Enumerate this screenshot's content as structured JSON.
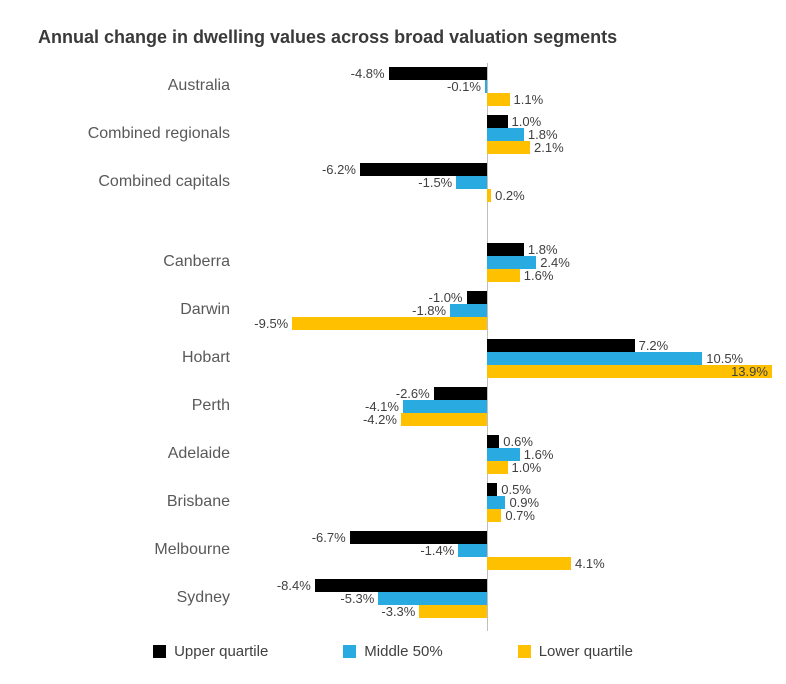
{
  "chart_data": {
    "type": "bar",
    "orientation": "horizontal",
    "title": "Annual change in dwelling values across broad valuation segments",
    "categories": [
      "Australia",
      "Combined regionals",
      "Combined capitals",
      "Canberra",
      "Darwin",
      "Hobart",
      "Perth",
      "Adelaide",
      "Brisbane",
      "Melbourne",
      "Sydney"
    ],
    "series": [
      {
        "name": "Upper quartile",
        "color": "#000000",
        "values": [
          -4.8,
          1.0,
          -6.2,
          1.8,
          -1.0,
          7.2,
          -2.6,
          0.6,
          0.5,
          -6.7,
          -8.4
        ]
      },
      {
        "name": "Middle 50%",
        "color": "#29ABE2",
        "values": [
          -0.1,
          1.8,
          -1.5,
          2.4,
          -1.8,
          10.5,
          -4.1,
          1.6,
          0.9,
          -1.4,
          -5.3
        ]
      },
      {
        "name": "Lower quartile",
        "color": "#FFC000",
        "values": [
          1.1,
          2.1,
          0.2,
          1.6,
          -9.5,
          13.9,
          -4.2,
          1.0,
          0.7,
          4.1,
          -3.3
        ]
      }
    ],
    "value_suffix": "%",
    "value_decimals": 1,
    "xlim": [
      -12.5,
      14.5
    ],
    "gap_after_index": 2,
    "grid": false,
    "legend_position": "bottom",
    "axis_line_color": "#bfbfbf"
  }
}
